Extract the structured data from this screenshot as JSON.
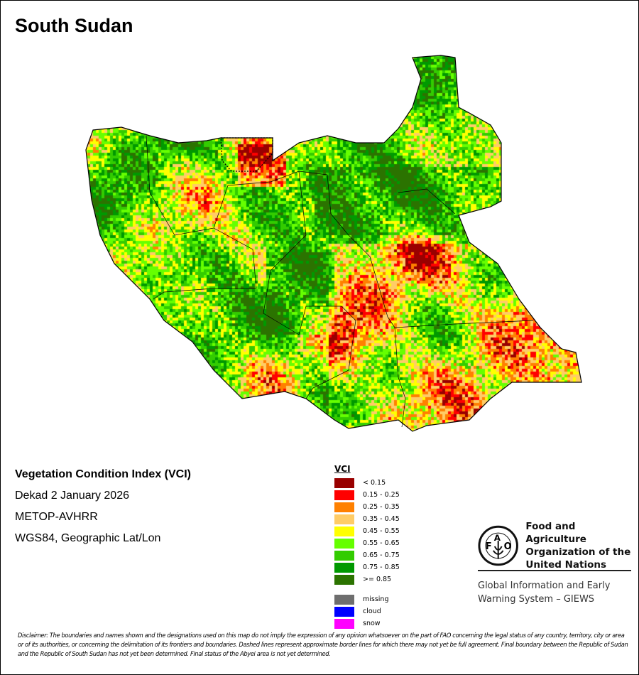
{
  "title": "South Sudan",
  "info": {
    "product": "Vegetation Condition Index (VCI)",
    "period": "Dekad 2 January 2026",
    "sensor": "METOP-AVHRR",
    "projection": "WGS84, Geographic Lat/Lon"
  },
  "legend": {
    "title": "VCI",
    "classes": [
      {
        "label": "< 0.15",
        "color": "#990000"
      },
      {
        "label": "0.15 - 0.25",
        "color": "#ff0000"
      },
      {
        "label": "0.25 - 0.35",
        "color": "#ff8000"
      },
      {
        "label": "0.35 - 0.45",
        "color": "#ffcc66"
      },
      {
        "label": "0.45 - 0.55",
        "color": "#ffff00"
      },
      {
        "label": "0.55 - 0.65",
        "color": "#66ff00"
      },
      {
        "label": "0.65 - 0.75",
        "color": "#33cc00"
      },
      {
        "label": "0.75 - 0.85",
        "color": "#009900"
      },
      {
        "label": ">= 0.85",
        "color": "#2b7300"
      }
    ],
    "other": [
      {
        "label": "missing",
        "color": "#6e6e6e"
      },
      {
        "label": "cloud",
        "color": "#0000ff"
      },
      {
        "label": "snow",
        "color": "#ff00ff"
      }
    ]
  },
  "fao": {
    "logo_text": "FAO FIAT PANIS",
    "name_lines": [
      "Food and Agriculture",
      "Organization of the",
      "United Nations"
    ],
    "giews_lines": [
      "Global Information and Early",
      "Warning System – GIEWS"
    ]
  },
  "disclaimer": "Disclaimer: The boundaries and names shown and the designations used on this map do not imply the expression of any opinion whatsoever on the part of FAO concerning the legal status of any country, territory, city or area or of its authorities, or concerning the delimitation of its frontiers and boundaries. Dashed lines represent approximate border lines for which there may not yet be full agreement.  Final boundary between the Republic of Sudan and the Republic of South Sudan has not yet been determined. Final status of the Abyei area is not yet determined."
}
